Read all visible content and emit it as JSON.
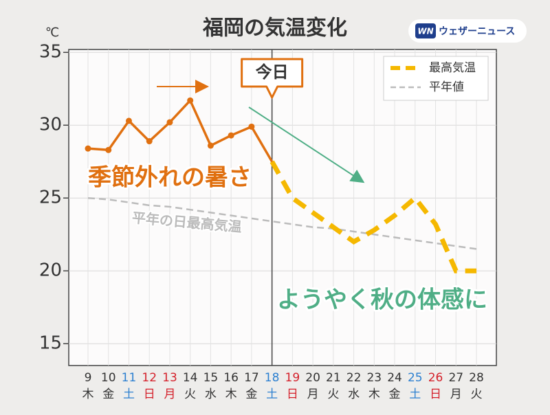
{
  "chart_data": {
    "type": "line",
    "title": "福岡の気温変化",
    "y_unit": "℃",
    "brand": {
      "badge": "WN",
      "name": "ウェザーニュース"
    },
    "categories": [
      "9",
      "10",
      "11",
      "12",
      "13",
      "14",
      "15",
      "16",
      "17",
      "18",
      "19",
      "20",
      "21",
      "22",
      "23",
      "24",
      "25",
      "26",
      "27",
      "28"
    ],
    "weekdays": [
      "木",
      "金",
      "土",
      "日",
      "月",
      "火",
      "水",
      "木",
      "金",
      "土",
      "日",
      "月",
      "火",
      "水",
      "木",
      "金",
      "土",
      "日",
      "月",
      "火"
    ],
    "category_colors": [
      "#333",
      "#333",
      "#2b7fd0",
      "#d4202a",
      "#d4202a",
      "#333",
      "#333",
      "#333",
      "#333",
      "#2b7fd0",
      "#d4202a",
      "#333",
      "#333",
      "#333",
      "#333",
      "#333",
      "#2b7fd0",
      "#d4202a",
      "#333",
      "#333"
    ],
    "series": [
      {
        "name": "最高気温",
        "color": "#f5b800",
        "observed_color": "#e07010",
        "values": [
          28.4,
          28.3,
          30.3,
          28.9,
          30.2,
          31.7,
          28.6,
          29.3,
          29.9,
          27.5,
          25.0,
          24.0,
          23.0,
          22.0,
          22.8,
          23.8,
          25.0,
          23.2,
          20.0,
          20.0
        ]
      },
      {
        "name": "平年値",
        "color": "#bbbbbb",
        "values": [
          25.0,
          24.9,
          24.7,
          24.5,
          24.4,
          24.2,
          24.0,
          23.8,
          23.6,
          23.4,
          23.2,
          23.0,
          22.9,
          22.7,
          22.5,
          22.3,
          22.1,
          21.9,
          21.7,
          21.5
        ]
      }
    ],
    "today": {
      "label": "今日",
      "category": "18"
    },
    "annotations": [
      {
        "text": "季節外れの暑さ",
        "color": "#e07010"
      },
      {
        "text": "ようやく秋の体感に",
        "color": "#4fae86"
      },
      {
        "text": "平年の日最高気温",
        "color": "#bbbbbb"
      }
    ],
    "ylim": [
      13.5,
      35.2
    ],
    "yticks": [
      15,
      20,
      25,
      30,
      35
    ],
    "grid": true,
    "legend": "upper right"
  }
}
